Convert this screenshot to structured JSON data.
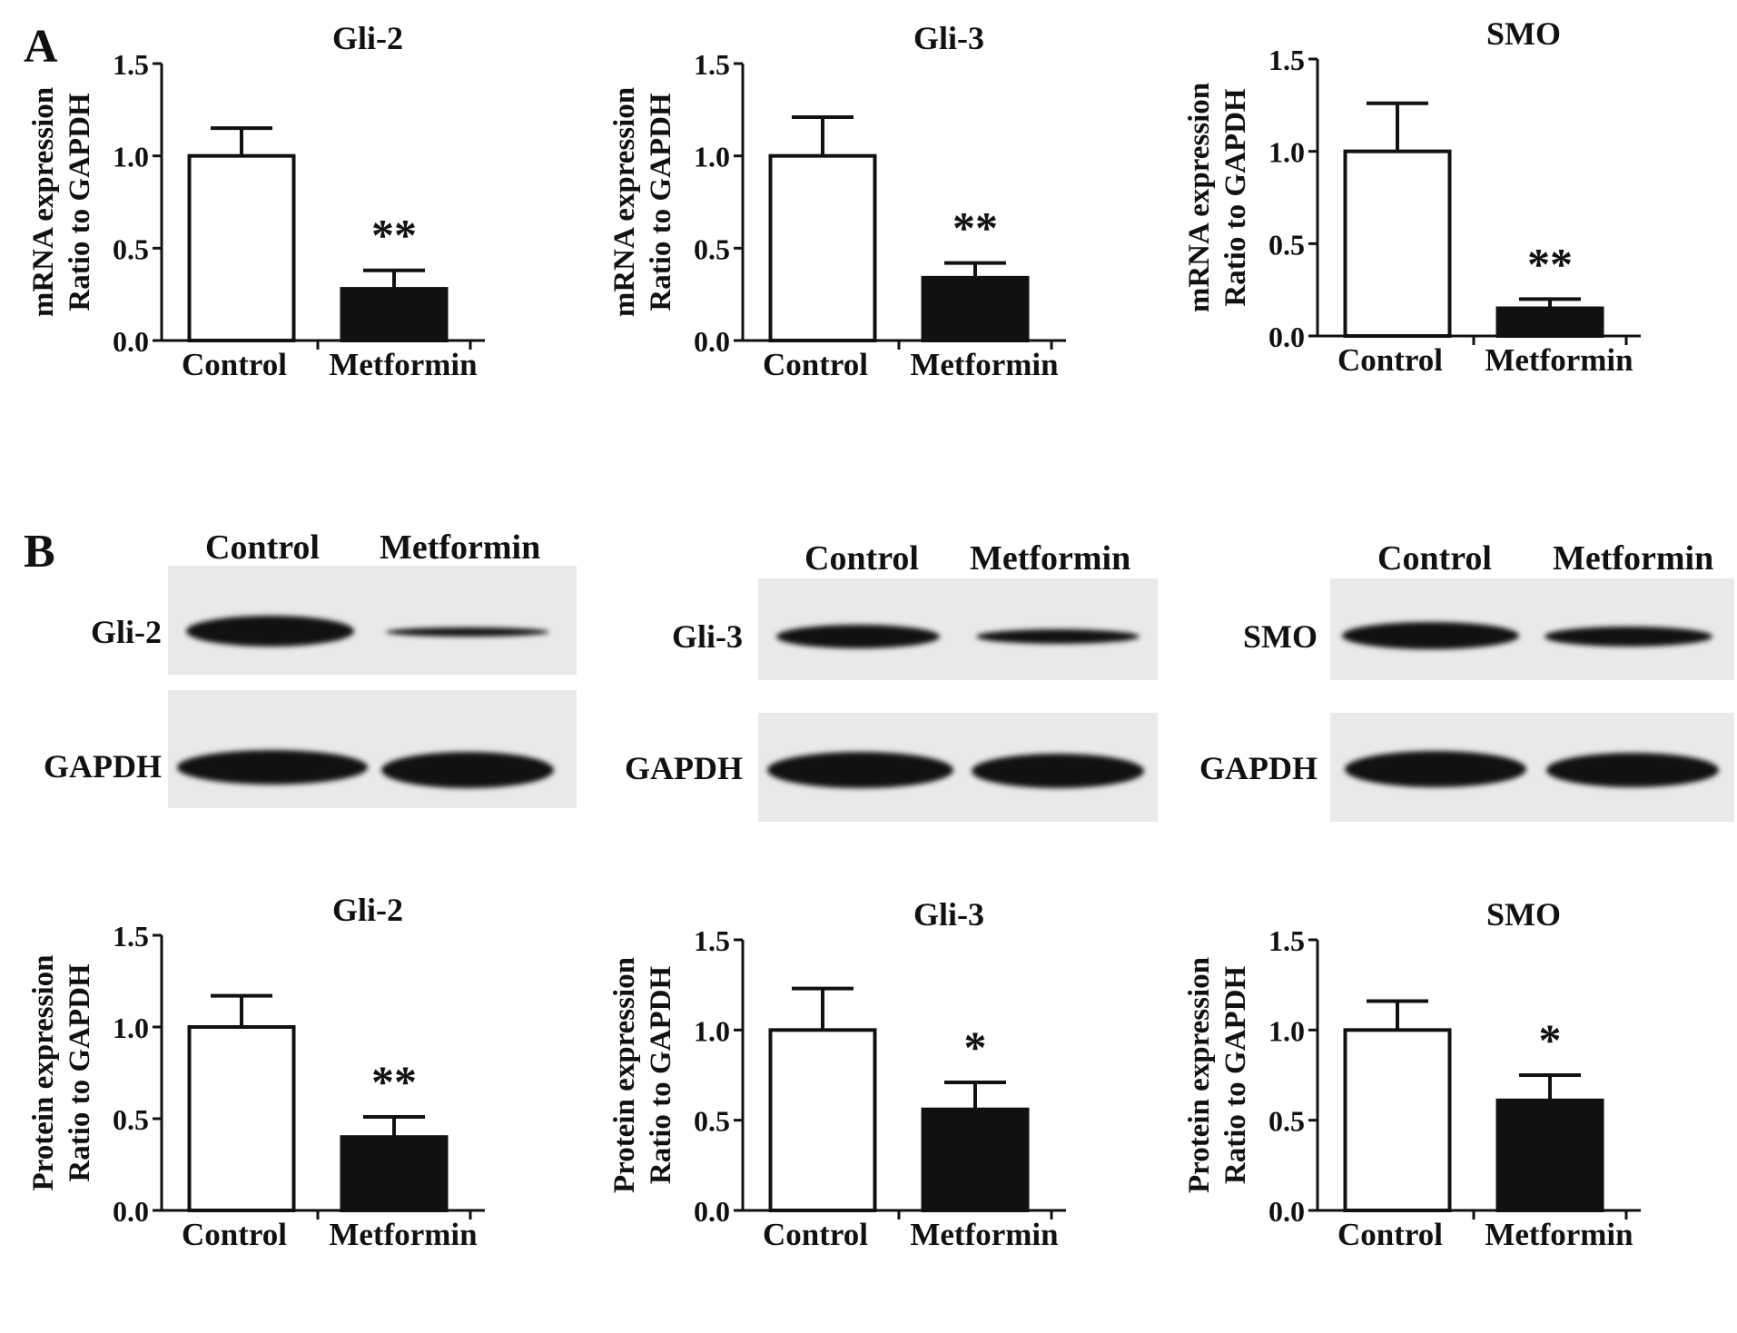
{
  "panel_labels": {
    "a": "A",
    "b": "B"
  },
  "lanes": [
    "Control",
    "Metformin"
  ],
  "blot_rows": [
    {
      "target": "Gli-2",
      "loading": "GAPDH",
      "target_band": [
        1.0,
        0.28
      ],
      "loading_band": [
        1.0,
        1.0
      ]
    },
    {
      "target": "Gli-3",
      "loading": "GAPDH",
      "target_band": [
        1.0,
        0.55
      ],
      "loading_band": [
        1.0,
        1.0
      ]
    },
    {
      "target": "SMO",
      "loading": "GAPDH",
      "target_band": [
        1.0,
        0.6
      ],
      "loading_band": [
        1.0,
        1.0
      ]
    }
  ],
  "chart_data": [
    {
      "type": "bar",
      "title": "Gli-2",
      "ylabel_line1": "mRNA expression",
      "ylabel_line2": "Ratio to GAPDH",
      "categories": [
        "Control",
        "Metformin"
      ],
      "values": [
        1.0,
        0.28
      ],
      "errors": [
        0.15,
        0.1
      ],
      "annotations": [
        "",
        "**"
      ],
      "ylim": [
        0,
        1.5
      ],
      "yticks": [
        "0.0",
        "0.5",
        "1.0",
        "1.5"
      ],
      "bar_colors": [
        "#ffffff",
        "#111111"
      ]
    },
    {
      "type": "bar",
      "title": "Gli-3",
      "ylabel_line1": "mRNA expression",
      "ylabel_line2": "Ratio to GAPDH",
      "categories": [
        "Control",
        "Metformin"
      ],
      "values": [
        1.0,
        0.34
      ],
      "errors": [
        0.21,
        0.08
      ],
      "annotations": [
        "",
        "**"
      ],
      "ylim": [
        0,
        1.5
      ],
      "yticks": [
        "0.0",
        "0.5",
        "1.0",
        "1.5"
      ],
      "bar_colors": [
        "#ffffff",
        "#111111"
      ]
    },
    {
      "type": "bar",
      "title": "SMO",
      "ylabel_line1": "mRNA expression",
      "ylabel_line2": "Ratio to GAPDH",
      "categories": [
        "Control",
        "Metformin"
      ],
      "values": [
        1.0,
        0.15
      ],
      "errors": [
        0.26,
        0.05
      ],
      "annotations": [
        "",
        "**"
      ],
      "ylim": [
        0,
        1.5
      ],
      "yticks": [
        "0.0",
        "0.5",
        "1.0",
        "1.5"
      ],
      "bar_colors": [
        "#ffffff",
        "#111111"
      ]
    },
    {
      "type": "bar",
      "title": "Gli-2",
      "ylabel_line1": "Protein expression",
      "ylabel_line2": "Ratio to GAPDH",
      "categories": [
        "Control",
        "Metformin"
      ],
      "values": [
        1.0,
        0.4
      ],
      "errors": [
        0.17,
        0.11
      ],
      "annotations": [
        "",
        "**"
      ],
      "ylim": [
        0,
        1.5
      ],
      "yticks": [
        "0.0",
        "0.5",
        "1.0",
        "1.5"
      ],
      "bar_colors": [
        "#ffffff",
        "#111111"
      ]
    },
    {
      "type": "bar",
      "title": "Gli-3",
      "ylabel_line1": "Protein expression",
      "ylabel_line2": "Ratio to GAPDH",
      "categories": [
        "Control",
        "Metformin"
      ],
      "values": [
        1.0,
        0.56
      ],
      "errors": [
        0.23,
        0.15
      ],
      "annotations": [
        "",
        "*"
      ],
      "ylim": [
        0,
        1.5
      ],
      "yticks": [
        "0.0",
        "0.5",
        "1.0",
        "1.5"
      ],
      "bar_colors": [
        "#ffffff",
        "#111111"
      ]
    },
    {
      "type": "bar",
      "title": "SMO",
      "ylabel_line1": "Protein expression",
      "ylabel_line2": "Ratio to GAPDH",
      "categories": [
        "Control",
        "Metformin"
      ],
      "values": [
        1.0,
        0.61
      ],
      "errors": [
        0.16,
        0.14
      ],
      "annotations": [
        "",
        "*"
      ],
      "ylim": [
        0,
        1.5
      ],
      "yticks": [
        "0.0",
        "0.5",
        "1.0",
        "1.5"
      ],
      "bar_colors": [
        "#ffffff",
        "#111111"
      ]
    }
  ]
}
